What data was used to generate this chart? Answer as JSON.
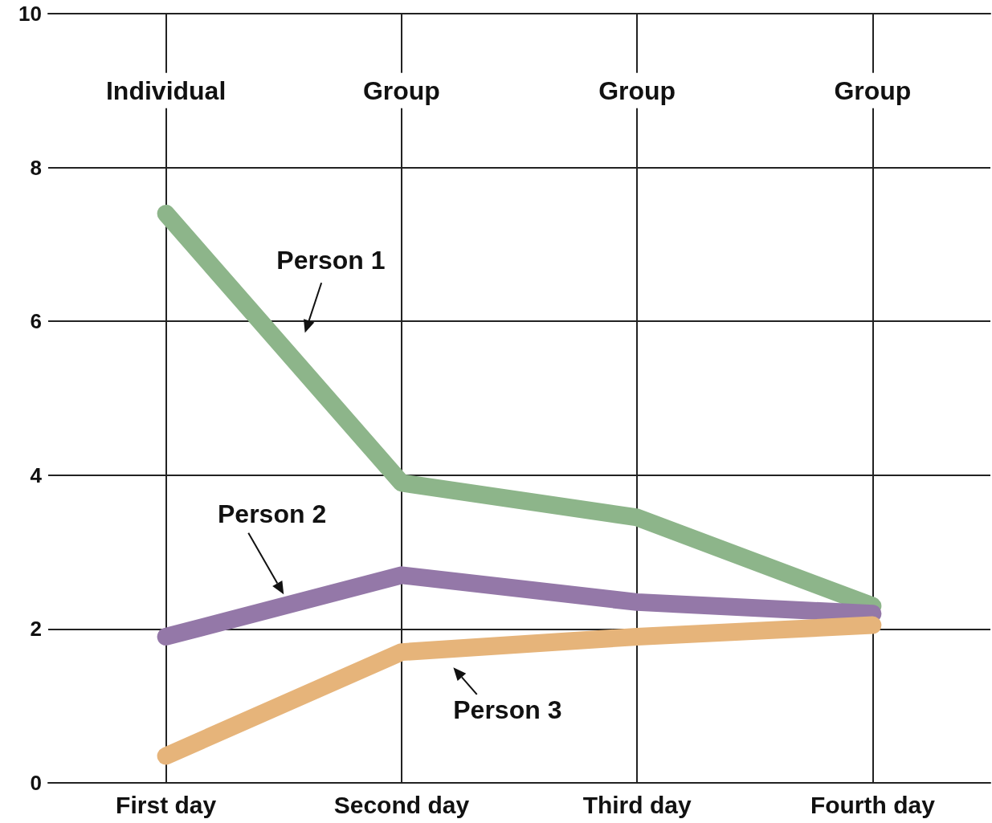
{
  "chart_data": {
    "type": "line",
    "categories": [
      "First day",
      "Second day",
      "Third day",
      "Fourth day"
    ],
    "series": [
      {
        "name": "Person 1",
        "color": "#8db58a",
        "values": [
          7.4,
          3.9,
          3.45,
          2.3
        ]
      },
      {
        "name": "Person 2",
        "color": "#9478a8",
        "values": [
          1.9,
          2.7,
          2.35,
          2.2
        ]
      },
      {
        "name": "Person 3",
        "color": "#e6b47a",
        "values": [
          0.35,
          1.7,
          1.9,
          2.05
        ]
      }
    ],
    "annotations": [
      "Individual",
      "Group",
      "Group",
      "Group"
    ],
    "ylim": [
      0,
      10
    ],
    "yticks": [
      0,
      2,
      4,
      6,
      8,
      10
    ],
    "grid": true,
    "legend": false,
    "marker": "none",
    "line_style": "solid"
  }
}
